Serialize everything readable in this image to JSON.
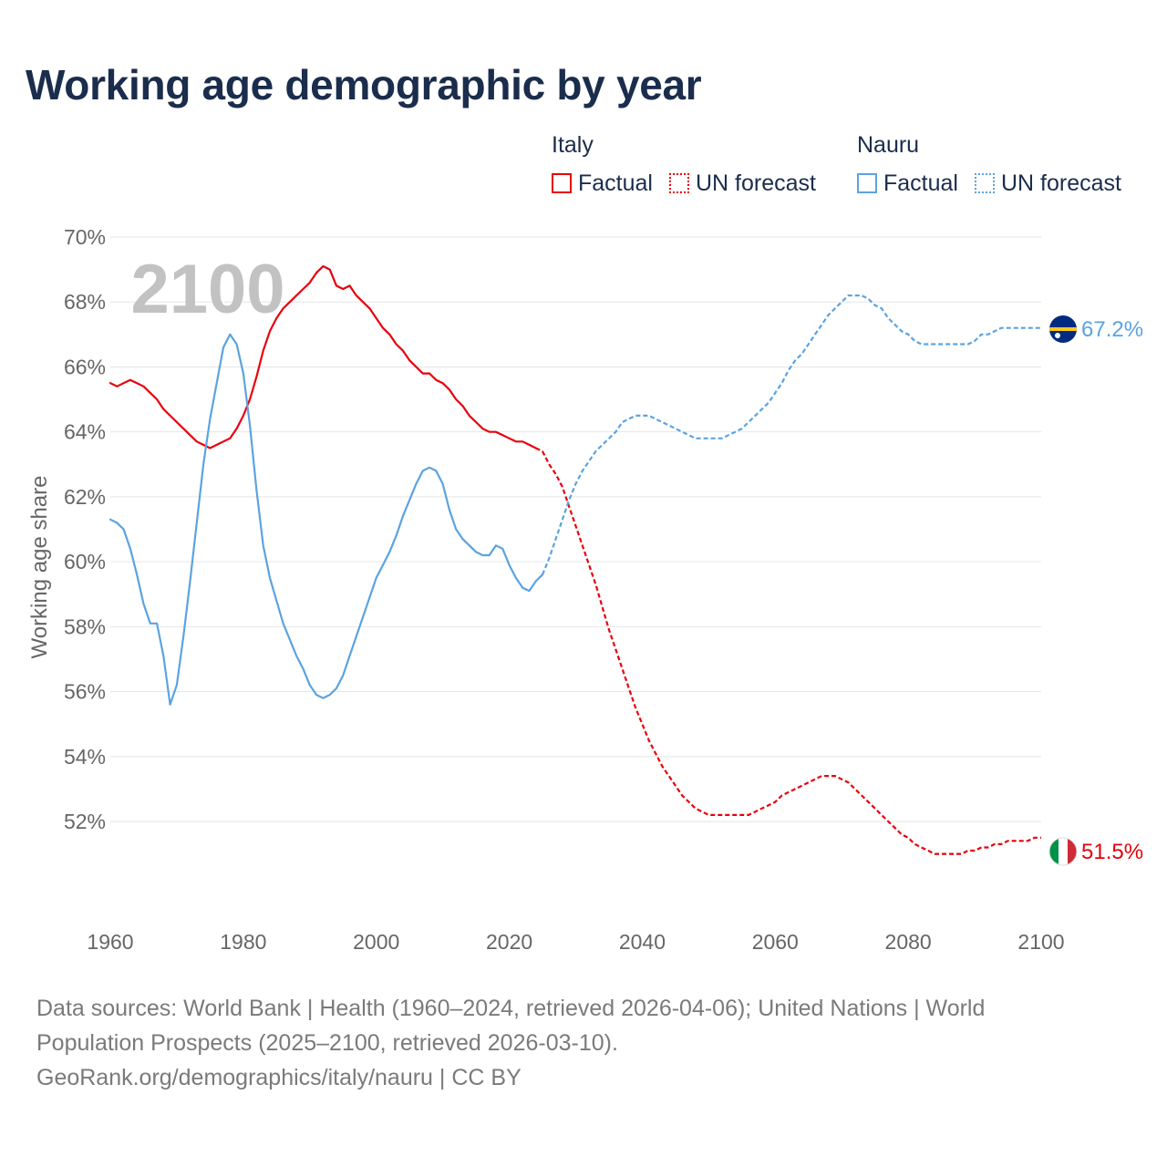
{
  "title": "Working age demographic by year",
  "legend": {
    "groups": [
      {
        "name": "Italy",
        "color": "#e8000b",
        "factual_label": "Factual",
        "forecast_label": "UN forecast"
      },
      {
        "name": "Nauru",
        "color": "#5ba3e0",
        "factual_label": "Factual",
        "forecast_label": "UN forecast"
      }
    ]
  },
  "footer": {
    "line1": "Data sources: World Bank | Health (1960–2024, retrieved 2026-04-06); United Nations | World",
    "line2": "Population Prospects (2025–2100, retrieved 2026-03-10).",
    "line3": "GeoRank.org/demographics/italy/nauru | CC BY"
  },
  "chart_data": {
    "type": "line",
    "title": "Working age demographic by year",
    "ylabel": "Working age share",
    "xlabel": "",
    "year_watermark": "2100",
    "xlim": [
      1960,
      2100
    ],
    "ylim": [
      49.5,
      70
    ],
    "x_ticks": [
      "1960",
      "1980",
      "2000",
      "2020",
      "2040",
      "2060",
      "2080",
      "2100"
    ],
    "y_ticks": [
      "52%",
      "54%",
      "56%",
      "58%",
      "60%",
      "62%",
      "64%",
      "66%",
      "68%",
      "70%"
    ],
    "y_tick_values": [
      52,
      54,
      56,
      58,
      60,
      62,
      64,
      66,
      68,
      70
    ],
    "grid": true,
    "series": [
      {
        "name": "Italy",
        "color": "#e8000b",
        "end_label": "51.5%",
        "flag": "italy-flag",
        "factual": [
          [
            1960,
            65.5
          ],
          [
            1961,
            65.4
          ],
          [
            1962,
            65.5
          ],
          [
            1963,
            65.6
          ],
          [
            1964,
            65.5
          ],
          [
            1965,
            65.4
          ],
          [
            1966,
            65.2
          ],
          [
            1967,
            65.0
          ],
          [
            1968,
            64.7
          ],
          [
            1969,
            64.5
          ],
          [
            1970,
            64.3
          ],
          [
            1971,
            64.1
          ],
          [
            1972,
            63.9
          ],
          [
            1973,
            63.7
          ],
          [
            1974,
            63.6
          ],
          [
            1975,
            63.5
          ],
          [
            1976,
            63.6
          ],
          [
            1977,
            63.7
          ],
          [
            1978,
            63.8
          ],
          [
            1979,
            64.1
          ],
          [
            1980,
            64.5
          ],
          [
            1981,
            65.0
          ],
          [
            1982,
            65.7
          ],
          [
            1983,
            66.5
          ],
          [
            1984,
            67.1
          ],
          [
            1985,
            67.5
          ],
          [
            1986,
            67.8
          ],
          [
            1987,
            68.0
          ],
          [
            1988,
            68.2
          ],
          [
            1989,
            68.4
          ],
          [
            1990,
            68.6
          ],
          [
            1991,
            68.9
          ],
          [
            1992,
            69.1
          ],
          [
            1993,
            69.0
          ],
          [
            1994,
            68.5
          ],
          [
            1995,
            68.4
          ],
          [
            1996,
            68.5
          ],
          [
            1997,
            68.2
          ],
          [
            1998,
            68.0
          ],
          [
            1999,
            67.8
          ],
          [
            2000,
            67.5
          ],
          [
            2001,
            67.2
          ],
          [
            2002,
            67.0
          ],
          [
            2003,
            66.7
          ],
          [
            2004,
            66.5
          ],
          [
            2005,
            66.2
          ],
          [
            2006,
            66.0
          ],
          [
            2007,
            65.8
          ],
          [
            2008,
            65.8
          ],
          [
            2009,
            65.6
          ],
          [
            2010,
            65.5
          ],
          [
            2011,
            65.3
          ],
          [
            2012,
            65.0
          ],
          [
            2013,
            64.8
          ],
          [
            2014,
            64.5
          ],
          [
            2015,
            64.3
          ],
          [
            2016,
            64.1
          ],
          [
            2017,
            64.0
          ],
          [
            2018,
            64.0
          ],
          [
            2019,
            63.9
          ],
          [
            2020,
            63.8
          ],
          [
            2021,
            63.7
          ],
          [
            2022,
            63.7
          ],
          [
            2023,
            63.6
          ],
          [
            2024,
            63.5
          ]
        ],
        "forecast": [
          [
            2024,
            63.5
          ],
          [
            2025,
            63.4
          ],
          [
            2026,
            63.0
          ],
          [
            2027,
            62.7
          ],
          [
            2028,
            62.3
          ],
          [
            2029,
            61.7
          ],
          [
            2030,
            61.1
          ],
          [
            2031,
            60.5
          ],
          [
            2032,
            59.9
          ],
          [
            2033,
            59.3
          ],
          [
            2034,
            58.6
          ],
          [
            2035,
            57.9
          ],
          [
            2036,
            57.3
          ],
          [
            2037,
            56.7
          ],
          [
            2038,
            56.1
          ],
          [
            2039,
            55.5
          ],
          [
            2040,
            55.0
          ],
          [
            2041,
            54.5
          ],
          [
            2042,
            54.1
          ],
          [
            2043,
            53.7
          ],
          [
            2044,
            53.4
          ],
          [
            2045,
            53.1
          ],
          [
            2046,
            52.8
          ],
          [
            2047,
            52.6
          ],
          [
            2048,
            52.4
          ],
          [
            2049,
            52.3
          ],
          [
            2050,
            52.2
          ],
          [
            2051,
            52.2
          ],
          [
            2052,
            52.2
          ],
          [
            2053,
            52.2
          ],
          [
            2054,
            52.2
          ],
          [
            2055,
            52.2
          ],
          [
            2056,
            52.2
          ],
          [
            2057,
            52.3
          ],
          [
            2058,
            52.4
          ],
          [
            2059,
            52.5
          ],
          [
            2060,
            52.6
          ],
          [
            2061,
            52.8
          ],
          [
            2062,
            52.9
          ],
          [
            2063,
            53.0
          ],
          [
            2064,
            53.1
          ],
          [
            2065,
            53.2
          ],
          [
            2066,
            53.3
          ],
          [
            2067,
            53.4
          ],
          [
            2068,
            53.4
          ],
          [
            2069,
            53.4
          ],
          [
            2070,
            53.3
          ],
          [
            2071,
            53.2
          ],
          [
            2072,
            53.0
          ],
          [
            2073,
            52.8
          ],
          [
            2074,
            52.6
          ],
          [
            2075,
            52.4
          ],
          [
            2076,
            52.2
          ],
          [
            2077,
            52.0
          ],
          [
            2078,
            51.8
          ],
          [
            2079,
            51.6
          ],
          [
            2080,
            51.5
          ],
          [
            2081,
            51.3
          ],
          [
            2082,
            51.2
          ],
          [
            2083,
            51.1
          ],
          [
            2084,
            51.0
          ],
          [
            2085,
            51.0
          ],
          [
            2086,
            51.0
          ],
          [
            2087,
            51.0
          ],
          [
            2088,
            51.0
          ],
          [
            2089,
            51.1
          ],
          [
            2090,
            51.1
          ],
          [
            2091,
            51.2
          ],
          [
            2092,
            51.2
          ],
          [
            2093,
            51.3
          ],
          [
            2094,
            51.3
          ],
          [
            2095,
            51.4
          ],
          [
            2096,
            51.4
          ],
          [
            2097,
            51.4
          ],
          [
            2098,
            51.4
          ],
          [
            2099,
            51.5
          ],
          [
            2100,
            51.5
          ]
        ]
      },
      {
        "name": "Nauru",
        "color": "#5ba3e0",
        "end_label": "67.2%",
        "flag": "nauru-flag",
        "factual": [
          [
            1960,
            61.3
          ],
          [
            1961,
            61.2
          ],
          [
            1962,
            61.0
          ],
          [
            1963,
            60.4
          ],
          [
            1964,
            59.6
          ],
          [
            1965,
            58.7
          ],
          [
            1966,
            58.1
          ],
          [
            1967,
            58.1
          ],
          [
            1968,
            57.1
          ],
          [
            1969,
            55.6
          ],
          [
            1970,
            56.2
          ],
          [
            1971,
            57.7
          ],
          [
            1972,
            59.4
          ],
          [
            1973,
            61.2
          ],
          [
            1974,
            63.0
          ],
          [
            1975,
            64.4
          ],
          [
            1976,
            65.5
          ],
          [
            1977,
            66.6
          ],
          [
            1978,
            67.0
          ],
          [
            1979,
            66.7
          ],
          [
            1980,
            65.8
          ],
          [
            1981,
            64.2
          ],
          [
            1982,
            62.2
          ],
          [
            1983,
            60.5
          ],
          [
            1984,
            59.5
          ],
          [
            1985,
            58.8
          ],
          [
            1986,
            58.1
          ],
          [
            1987,
            57.6
          ],
          [
            1988,
            57.1
          ],
          [
            1989,
            56.7
          ],
          [
            1990,
            56.2
          ],
          [
            1991,
            55.9
          ],
          [
            1992,
            55.8
          ],
          [
            1993,
            55.9
          ],
          [
            1994,
            56.1
          ],
          [
            1995,
            56.5
          ],
          [
            1996,
            57.1
          ],
          [
            1997,
            57.7
          ],
          [
            1998,
            58.3
          ],
          [
            1999,
            58.9
          ],
          [
            2000,
            59.5
          ],
          [
            2001,
            59.9
          ],
          [
            2002,
            60.3
          ],
          [
            2003,
            60.8
          ],
          [
            2004,
            61.4
          ],
          [
            2005,
            61.9
          ],
          [
            2006,
            62.4
          ],
          [
            2007,
            62.8
          ],
          [
            2008,
            62.9
          ],
          [
            2009,
            62.8
          ],
          [
            2010,
            62.4
          ],
          [
            2011,
            61.6
          ],
          [
            2012,
            61.0
          ],
          [
            2013,
            60.7
          ],
          [
            2014,
            60.5
          ],
          [
            2015,
            60.3
          ],
          [
            2016,
            60.2
          ],
          [
            2017,
            60.2
          ],
          [
            2018,
            60.5
          ],
          [
            2019,
            60.4
          ],
          [
            2020,
            59.9
          ],
          [
            2021,
            59.5
          ],
          [
            2022,
            59.2
          ],
          [
            2023,
            59.1
          ],
          [
            2024,
            59.4
          ],
          [
            2025,
            59.6
          ]
        ],
        "forecast": [
          [
            2025,
            59.6
          ],
          [
            2026,
            60.1
          ],
          [
            2027,
            60.7
          ],
          [
            2028,
            61.3
          ],
          [
            2029,
            61.9
          ],
          [
            2030,
            62.4
          ],
          [
            2031,
            62.8
          ],
          [
            2032,
            63.1
          ],
          [
            2033,
            63.4
          ],
          [
            2034,
            63.6
          ],
          [
            2035,
            63.8
          ],
          [
            2036,
            64.0
          ],
          [
            2037,
            64.3
          ],
          [
            2038,
            64.4
          ],
          [
            2039,
            64.5
          ],
          [
            2040,
            64.5
          ],
          [
            2041,
            64.5
          ],
          [
            2042,
            64.4
          ],
          [
            2043,
            64.3
          ],
          [
            2044,
            64.2
          ],
          [
            2045,
            64.1
          ],
          [
            2046,
            64.0
          ],
          [
            2047,
            63.9
          ],
          [
            2048,
            63.8
          ],
          [
            2049,
            63.8
          ],
          [
            2050,
            63.8
          ],
          [
            2051,
            63.8
          ],
          [
            2052,
            63.8
          ],
          [
            2053,
            63.9
          ],
          [
            2054,
            64.0
          ],
          [
            2055,
            64.1
          ],
          [
            2056,
            64.3
          ],
          [
            2057,
            64.5
          ],
          [
            2058,
            64.7
          ],
          [
            2059,
            64.9
          ],
          [
            2060,
            65.2
          ],
          [
            2061,
            65.5
          ],
          [
            2062,
            65.9
          ],
          [
            2063,
            66.2
          ],
          [
            2064,
            66.4
          ],
          [
            2065,
            66.7
          ],
          [
            2066,
            67.0
          ],
          [
            2067,
            67.3
          ],
          [
            2068,
            67.6
          ],
          [
            2069,
            67.8
          ],
          [
            2070,
            68.0
          ],
          [
            2071,
            68.2
          ],
          [
            2072,
            68.2
          ],
          [
            2073,
            68.2
          ],
          [
            2074,
            68.1
          ],
          [
            2075,
            67.9
          ],
          [
            2076,
            67.8
          ],
          [
            2077,
            67.5
          ],
          [
            2078,
            67.3
          ],
          [
            2079,
            67.1
          ],
          [
            2080,
            67.0
          ],
          [
            2081,
            66.8
          ],
          [
            2082,
            66.7
          ],
          [
            2083,
            66.7
          ],
          [
            2084,
            66.7
          ],
          [
            2085,
            66.7
          ],
          [
            2086,
            66.7
          ],
          [
            2087,
            66.7
          ],
          [
            2088,
            66.7
          ],
          [
            2089,
            66.7
          ],
          [
            2090,
            66.8
          ],
          [
            2091,
            67.0
          ],
          [
            2092,
            67.0
          ],
          [
            2093,
            67.1
          ],
          [
            2094,
            67.2
          ],
          [
            2095,
            67.2
          ],
          [
            2096,
            67.2
          ],
          [
            2097,
            67.2
          ],
          [
            2098,
            67.2
          ],
          [
            2099,
            67.2
          ],
          [
            2100,
            67.2
          ]
        ]
      }
    ]
  }
}
